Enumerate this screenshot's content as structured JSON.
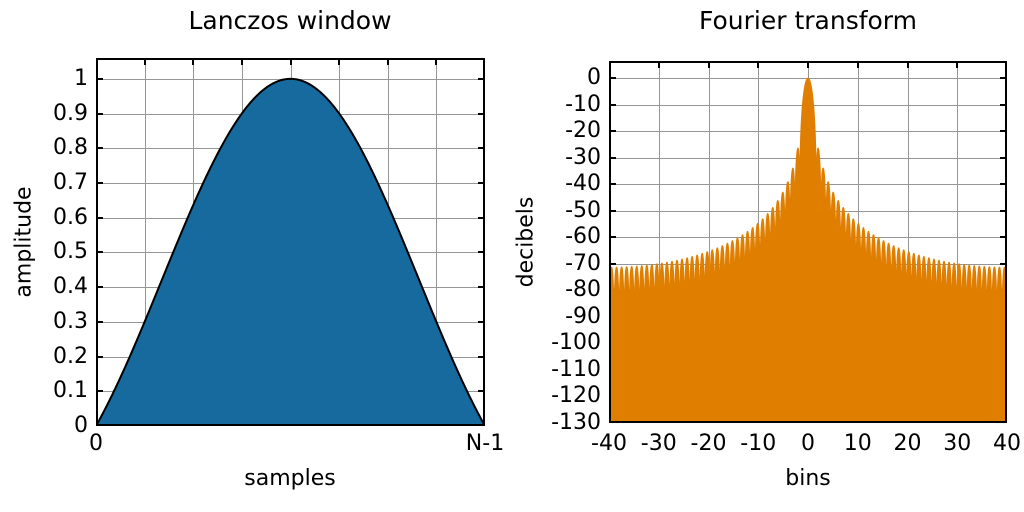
{
  "page": {
    "background": "#ffffff",
    "text_color": "#000000",
    "grid_color": "#969696",
    "frame_color": "#000000"
  },
  "chart_data": [
    {
      "type": "area",
      "title": "Lanczos window",
      "xlabel": "samples",
      "ylabel": "amplitude",
      "xlim": [
        0,
        1
      ],
      "ylim": [
        0,
        1.06
      ],
      "x_grid_divisions": 8,
      "x_ticks": {
        "values": [
          0,
          1
        ],
        "labels": [
          "0",
          "N-1"
        ]
      },
      "y_ticks": {
        "values": [
          1,
          0.9,
          0.8,
          0.7,
          0.6,
          0.5,
          0.4,
          0.3,
          0.2,
          0.1,
          0
        ],
        "labels": [
          "1",
          "0.9",
          "0.8",
          "0.7",
          "0.6",
          "0.5",
          "0.4",
          "0.3",
          "0.2",
          "0.1",
          "0"
        ]
      },
      "grid": true,
      "legend": false,
      "curve": {
        "formula": "w(n) = sinc(2n/(N-1) - 1),  sinc(x) = sin(pi*x)/(pi*x)",
        "zeros_at": [
          "n = 0",
          "n = N-1"
        ],
        "peak": {
          "x": "(N-1)/2",
          "amplitude": 1
        }
      },
      "fill_color": "#176a9d",
      "line_color": "#000000"
    },
    {
      "type": "area",
      "title": "Fourier transform",
      "xlabel": "bins",
      "ylabel": "decibels",
      "xlim": [
        -40,
        40
      ],
      "ylim": [
        -130,
        6.5
      ],
      "x_ticks": {
        "values": [
          -40,
          -30,
          -20,
          -10,
          0,
          10,
          20,
          30,
          40
        ],
        "labels": [
          "-40",
          "-30",
          "-20",
          "-10",
          "0",
          "10",
          "20",
          "30",
          "40"
        ]
      },
      "y_ticks": {
        "values": [
          0,
          -10,
          -20,
          -30,
          -40,
          -50,
          -60,
          -70,
          -80,
          -90,
          -100,
          -110,
          -120,
          -130
        ],
        "labels": [
          "0",
          "-10",
          "-20",
          "-30",
          "-40",
          "-50",
          "-60",
          "-70",
          "-80",
          "-90",
          "-100",
          "-110",
          "-120",
          "-130"
        ]
      },
      "grid": true,
      "legend": false,
      "curve": {
        "formula": "20*log10(|DFT(w)|) normalized to 0 dB peak, N = 80",
        "peak_db": 0,
        "peak_bin": 0,
        "first_sidelobe_db": -26,
        "sidelobe_null_spacing_bins": 1,
        "envelope_at_edge_db": -80
      },
      "fill_color": "#e07e00",
      "line_color": "#e07e00"
    }
  ]
}
